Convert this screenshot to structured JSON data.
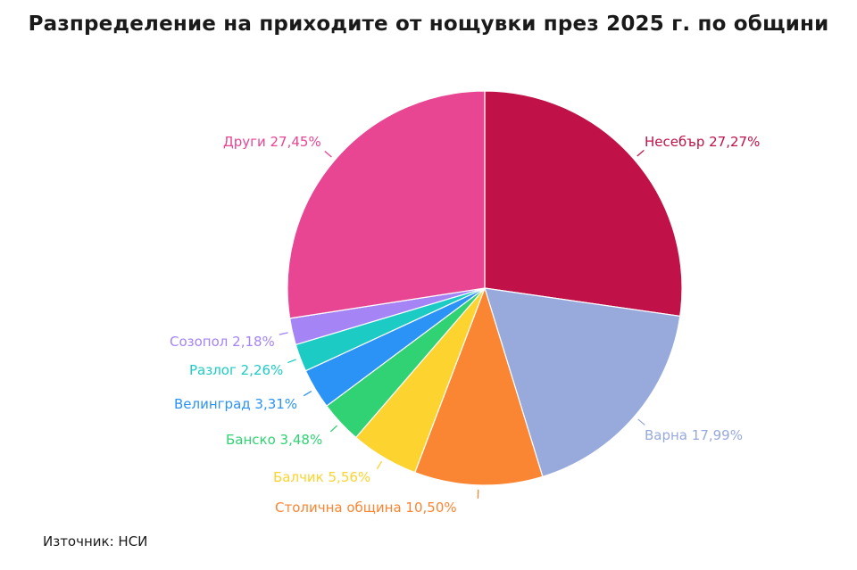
{
  "chart_data": {
    "type": "pie",
    "title": "Разпределение на приходите от нощувки през 2025 г. по общини",
    "source": "Източник: НСИ",
    "slices": [
      {
        "name": "Несебър",
        "value": 27.27,
        "label": "Несебър 27,27%",
        "color": "#C01248"
      },
      {
        "name": "Варна",
        "value": 17.99,
        "label": "Варна 17,99%",
        "color": "#98A9DC"
      },
      {
        "name": "Столична община",
        "value": 10.5,
        "label": "Столична община 10,50%",
        "color": "#FA8532"
      },
      {
        "name": "Балчик",
        "value": 5.56,
        "label": "Балчик 5,56%",
        "color": "#FDD330"
      },
      {
        "name": "Банско",
        "value": 3.48,
        "label": "Банско 3,48%",
        "color": "#30D273"
      },
      {
        "name": "Велинград",
        "value": 3.31,
        "label": "Велинград 3,31%",
        "color": "#2B92F6"
      },
      {
        "name": "Разлог",
        "value": 2.26,
        "label": "Разлог 2,26%",
        "color": "#1CCCC4"
      },
      {
        "name": "Созопол",
        "value": 2.18,
        "label": "Созопол 2,18%",
        "color": "#A584F5"
      },
      {
        "name": "Други",
        "value": 27.45,
        "label": "Други 27,45%",
        "color": "#E84593"
      }
    ]
  }
}
